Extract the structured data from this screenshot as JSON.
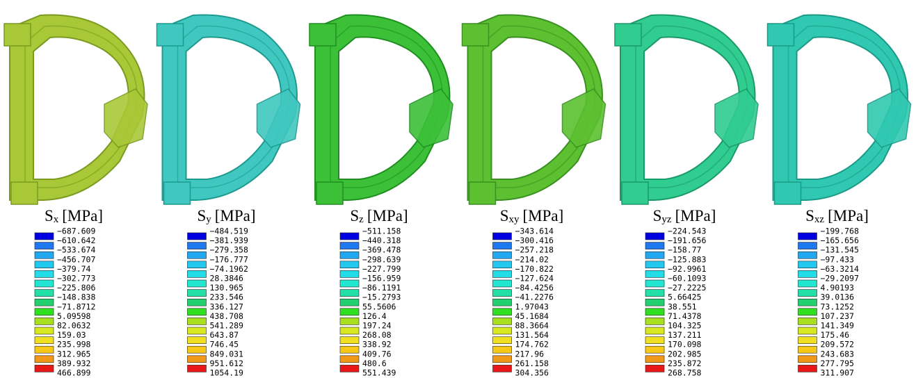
{
  "panels": [
    {
      "title": {
        "symbol": "S",
        "subscript": "x",
        "unit": "[MPa]"
      },
      "legend": [
        "−687.609",
        "−610.642",
        "−533.674",
        "−456.707",
        "−379.74",
        "−302.773",
        "−225.806",
        "−148.838",
        "−71.8712",
        "5.09598",
        "82.0632",
        "159.03",
        "235.998",
        "312.965",
        "389.932",
        "466.899"
      ]
    },
    {
      "title": {
        "symbol": "S",
        "subscript": "y",
        "unit": "[MPa]"
      },
      "legend": [
        "−484.519",
        "−381.939",
        "−279.358",
        "−176.777",
        "−74.1962",
        "28.3846",
        "130.965",
        "233.546",
        "336.127",
        "438.708",
        "541.289",
        "643.87",
        "746.45",
        "849.031",
        "951.612",
        "1054.19"
      ]
    },
    {
      "title": {
        "symbol": "S",
        "subscript": "z",
        "unit": "[MPa]"
      },
      "legend": [
        "−511.158",
        "−440.318",
        "−369.478",
        "−298.639",
        "−227.799",
        "−156.959",
        "−86.1191",
        "−15.2793",
        "55.5606",
        "126.4",
        "197.24",
        "268.08",
        "338.92",
        "409.76",
        "480.6",
        "551.439"
      ]
    },
    {
      "title": {
        "symbol": "S",
        "subscript": "xy",
        "unit": "[MPa]"
      },
      "legend": [
        "−343.614",
        "−300.416",
        "−257.218",
        "−214.02",
        "−170.822",
        "−127.624",
        "−84.4256",
        "−41.2276",
        "1.97043",
        "45.1684",
        "88.3664",
        "131.564",
        "174.762",
        "217.96",
        "261.158",
        "304.356"
      ]
    },
    {
      "title": {
        "symbol": "S",
        "subscript": "yz",
        "unit": "[MPa]"
      },
      "legend": [
        "−224.543",
        "−191.656",
        "−158.77",
        "−125.883",
        "−92.9961",
        "−60.1093",
        "−27.2225",
        "5.66425",
        "38.551",
        "71.4378",
        "104.325",
        "137.211",
        "170.098",
        "202.985",
        "235.872",
        "268.758"
      ]
    },
    {
      "title": {
        "symbol": "S",
        "subscript": "xz",
        "unit": "[MPa]"
      },
      "legend": [
        "−199.768",
        "−165.656",
        "−131.545",
        "−97.433",
        "−63.3214",
        "−29.2097",
        "4.90193",
        "39.0136",
        "73.1252",
        "107.237",
        "141.349",
        "175.46",
        "209.572",
        "243.683",
        "277.795",
        "311.907"
      ]
    }
  ]
}
